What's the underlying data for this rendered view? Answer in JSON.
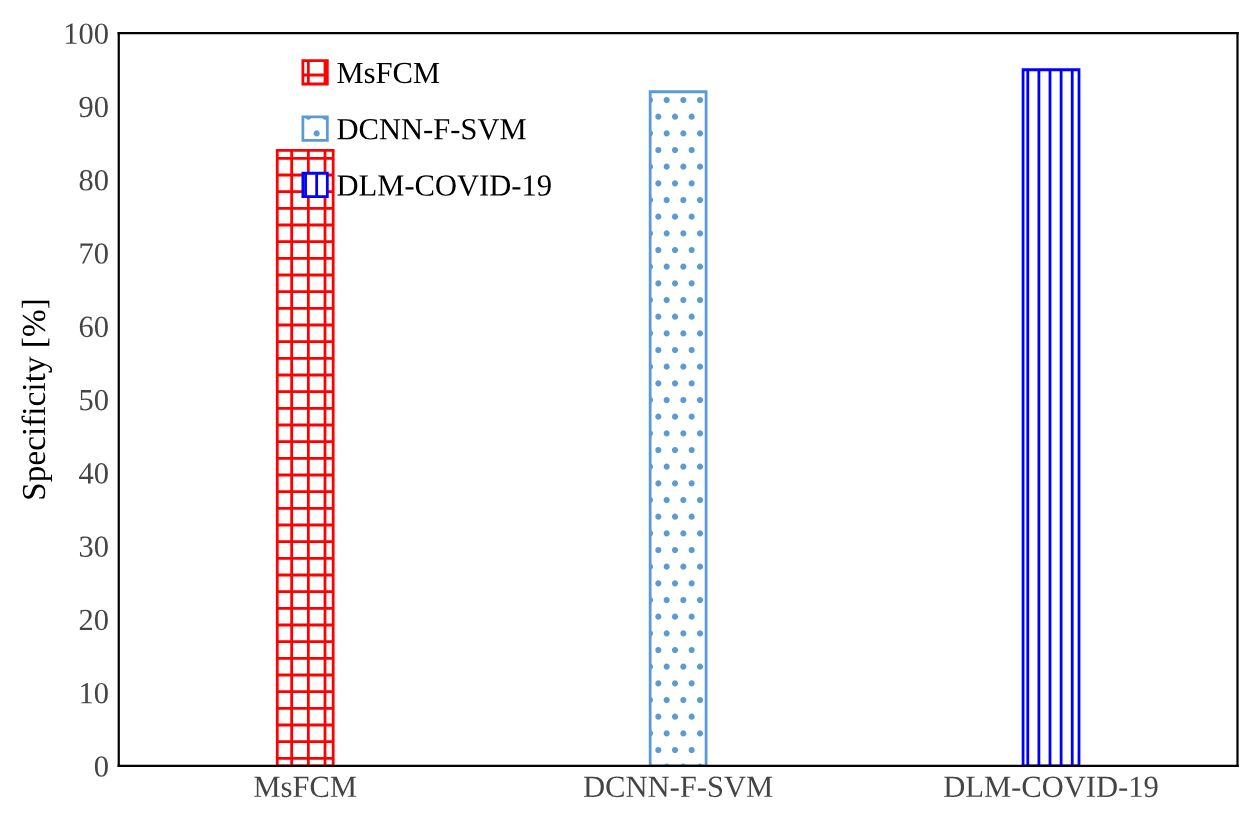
{
  "chart_data": {
    "type": "bar",
    "ylabel": "Specificity [%]",
    "categories": [
      "MsFCM",
      "DCNN-F-SVM",
      "DLM-COVID-19"
    ],
    "series": [
      {
        "name": "MsFCM",
        "color": "#ff0000",
        "values": [
          84,
          null,
          null
        ]
      },
      {
        "name": "DCNN-F-SVM",
        "color": "#5b9bd5",
        "values": [
          null,
          92,
          null
        ]
      },
      {
        "name": "DLM-COVID-19",
        "color": "#0000ff",
        "values": [
          null,
          null,
          95
        ]
      }
    ],
    "ylim": [
      0,
      100
    ],
    "yticks": [
      0,
      10,
      20,
      30,
      40,
      50,
      60,
      70,
      80,
      90,
      100
    ],
    "grid": false,
    "legend": "top left"
  }
}
